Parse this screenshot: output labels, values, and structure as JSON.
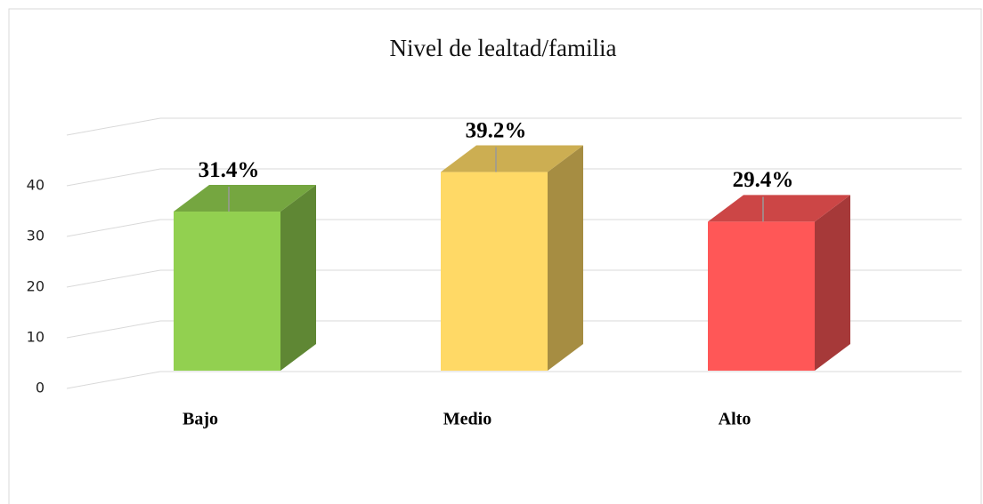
{
  "chart_data": {
    "type": "bar3d",
    "title": "Nivel de lealtad/familia",
    "categories": [
      "Bajo",
      "Medio",
      "Alto"
    ],
    "values": [
      31.4,
      39.2,
      29.4
    ],
    "value_labels": [
      "31.4%",
      "39.2%",
      "29.4%"
    ],
    "colors": [
      "#92d050",
      "#ffd966",
      "#ff5757"
    ],
    "ylim": [
      0,
      50
    ],
    "yticks": [
      0,
      10,
      20,
      30,
      40
    ],
    "grid": true
  }
}
